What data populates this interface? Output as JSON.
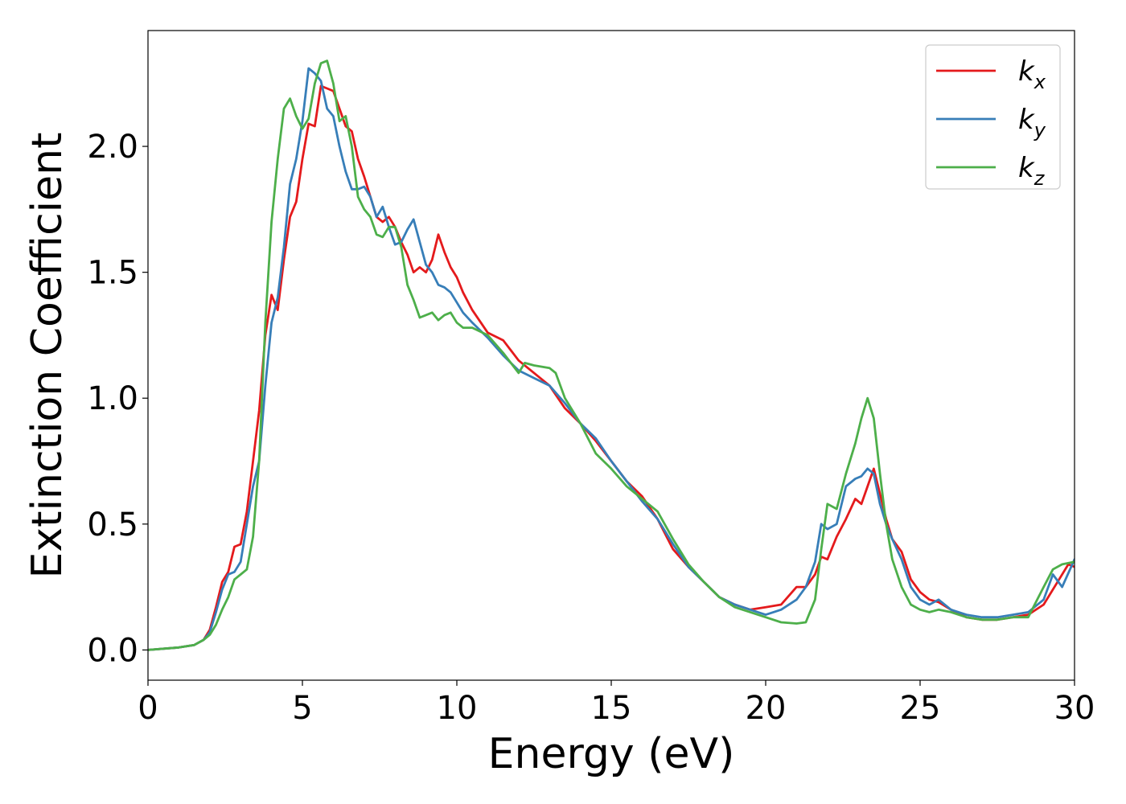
{
  "chart_data": {
    "type": "line",
    "title": "",
    "xlabel": "Energy (eV)",
    "ylabel": "Extinction Coefficient",
    "xlim": [
      0,
      30
    ],
    "ylim": [
      -0.12,
      2.46
    ],
    "xticks": [
      0,
      5,
      10,
      15,
      20,
      25,
      30
    ],
    "xtick_labels": [
      "0",
      "5",
      "10",
      "15",
      "20",
      "25",
      "30"
    ],
    "yticks": [
      0.0,
      0.5,
      1.0,
      1.5,
      2.0
    ],
    "ytick_labels": [
      "0.0",
      "0.5",
      "1.0",
      "1.5",
      "2.0"
    ],
    "grid": false,
    "legend_position": "top-right",
    "series": [
      {
        "name": "k_x",
        "label_main": "k",
        "label_sub": "x",
        "color": "#e41a1c",
        "points": [
          [
            0,
            0
          ],
          [
            1,
            0.01
          ],
          [
            1.5,
            0.02
          ],
          [
            1.8,
            0.04
          ],
          [
            2.0,
            0.08
          ],
          [
            2.2,
            0.17
          ],
          [
            2.4,
            0.27
          ],
          [
            2.6,
            0.31
          ],
          [
            2.8,
            0.41
          ],
          [
            3.0,
            0.42
          ],
          [
            3.2,
            0.55
          ],
          [
            3.4,
            0.75
          ],
          [
            3.6,
            0.95
          ],
          [
            3.8,
            1.25
          ],
          [
            4.0,
            1.41
          ],
          [
            4.2,
            1.35
          ],
          [
            4.4,
            1.55
          ],
          [
            4.6,
            1.72
          ],
          [
            4.8,
            1.78
          ],
          [
            5.0,
            1.95
          ],
          [
            5.2,
            2.09
          ],
          [
            5.4,
            2.08
          ],
          [
            5.6,
            2.24
          ],
          [
            5.8,
            2.23
          ],
          [
            6.0,
            2.22
          ],
          [
            6.2,
            2.15
          ],
          [
            6.4,
            2.08
          ],
          [
            6.6,
            2.06
          ],
          [
            6.8,
            1.95
          ],
          [
            7.0,
            1.88
          ],
          [
            7.2,
            1.8
          ],
          [
            7.4,
            1.72
          ],
          [
            7.6,
            1.7
          ],
          [
            7.8,
            1.72
          ],
          [
            8.0,
            1.68
          ],
          [
            8.2,
            1.62
          ],
          [
            8.4,
            1.57
          ],
          [
            8.6,
            1.5
          ],
          [
            8.8,
            1.52
          ],
          [
            9.0,
            1.5
          ],
          [
            9.2,
            1.55
          ],
          [
            9.4,
            1.65
          ],
          [
            9.6,
            1.58
          ],
          [
            9.8,
            1.52
          ],
          [
            10.0,
            1.48
          ],
          [
            10.2,
            1.42
          ],
          [
            10.5,
            1.35
          ],
          [
            11.0,
            1.26
          ],
          [
            11.5,
            1.23
          ],
          [
            12.0,
            1.15
          ],
          [
            12.5,
            1.1
          ],
          [
            13.0,
            1.05
          ],
          [
            13.5,
            0.96
          ],
          [
            14.0,
            0.9
          ],
          [
            14.5,
            0.83
          ],
          [
            15.0,
            0.75
          ],
          [
            15.5,
            0.67
          ],
          [
            16.0,
            0.61
          ],
          [
            16.5,
            0.52
          ],
          [
            17.0,
            0.4
          ],
          [
            17.5,
            0.33
          ],
          [
            18.0,
            0.27
          ],
          [
            18.5,
            0.21
          ],
          [
            19.0,
            0.18
          ],
          [
            19.5,
            0.16
          ],
          [
            20.0,
            0.17
          ],
          [
            20.5,
            0.18
          ],
          [
            21.0,
            0.25
          ],
          [
            21.3,
            0.25
          ],
          [
            21.6,
            0.3
          ],
          [
            21.8,
            0.37
          ],
          [
            22.0,
            0.36
          ],
          [
            22.3,
            0.45
          ],
          [
            22.6,
            0.52
          ],
          [
            22.9,
            0.6
          ],
          [
            23.1,
            0.58
          ],
          [
            23.3,
            0.65
          ],
          [
            23.5,
            0.72
          ],
          [
            23.7,
            0.62
          ],
          [
            23.9,
            0.52
          ],
          [
            24.1,
            0.44
          ],
          [
            24.4,
            0.39
          ],
          [
            24.7,
            0.28
          ],
          [
            25.0,
            0.23
          ],
          [
            25.3,
            0.2
          ],
          [
            25.6,
            0.19
          ],
          [
            26.0,
            0.16
          ],
          [
            26.5,
            0.13
          ],
          [
            27.0,
            0.12
          ],
          [
            27.5,
            0.12
          ],
          [
            28.0,
            0.13
          ],
          [
            28.5,
            0.14
          ],
          [
            29.0,
            0.18
          ],
          [
            29.5,
            0.28
          ],
          [
            29.8,
            0.34
          ],
          [
            30.0,
            0.33
          ]
        ]
      },
      {
        "name": "k_y",
        "label_main": "k",
        "label_sub": "y",
        "color": "#377eb8",
        "points": [
          [
            0,
            0
          ],
          [
            1,
            0.01
          ],
          [
            1.5,
            0.02
          ],
          [
            1.8,
            0.04
          ],
          [
            2.0,
            0.07
          ],
          [
            2.2,
            0.15
          ],
          [
            2.4,
            0.24
          ],
          [
            2.6,
            0.3
          ],
          [
            2.8,
            0.31
          ],
          [
            3.0,
            0.35
          ],
          [
            3.2,
            0.5
          ],
          [
            3.4,
            0.65
          ],
          [
            3.6,
            0.75
          ],
          [
            3.8,
            1.05
          ],
          [
            4.0,
            1.3
          ],
          [
            4.2,
            1.4
          ],
          [
            4.4,
            1.6
          ],
          [
            4.6,
            1.85
          ],
          [
            4.8,
            1.95
          ],
          [
            5.0,
            2.1
          ],
          [
            5.2,
            2.31
          ],
          [
            5.4,
            2.29
          ],
          [
            5.6,
            2.26
          ],
          [
            5.8,
            2.15
          ],
          [
            6.0,
            2.12
          ],
          [
            6.2,
            2.0
          ],
          [
            6.4,
            1.9
          ],
          [
            6.6,
            1.83
          ],
          [
            6.8,
            1.83
          ],
          [
            7.0,
            1.84
          ],
          [
            7.2,
            1.8
          ],
          [
            7.4,
            1.72
          ],
          [
            7.6,
            1.76
          ],
          [
            7.8,
            1.68
          ],
          [
            8.0,
            1.61
          ],
          [
            8.2,
            1.62
          ],
          [
            8.4,
            1.67
          ],
          [
            8.6,
            1.71
          ],
          [
            8.8,
            1.62
          ],
          [
            9.0,
            1.53
          ],
          [
            9.2,
            1.5
          ],
          [
            9.4,
            1.45
          ],
          [
            9.6,
            1.44
          ],
          [
            9.8,
            1.42
          ],
          [
            10.0,
            1.38
          ],
          [
            10.2,
            1.34
          ],
          [
            10.5,
            1.3
          ],
          [
            11.0,
            1.24
          ],
          [
            11.5,
            1.17
          ],
          [
            12.0,
            1.11
          ],
          [
            12.5,
            1.08
          ],
          [
            13.0,
            1.05
          ],
          [
            13.5,
            0.98
          ],
          [
            14.0,
            0.9
          ],
          [
            14.5,
            0.84
          ],
          [
            15.0,
            0.75
          ],
          [
            15.5,
            0.67
          ],
          [
            16.0,
            0.59
          ],
          [
            16.5,
            0.52
          ],
          [
            17.0,
            0.42
          ],
          [
            17.5,
            0.33
          ],
          [
            18.0,
            0.27
          ],
          [
            18.5,
            0.21
          ],
          [
            19.0,
            0.18
          ],
          [
            19.5,
            0.16
          ],
          [
            20.0,
            0.14
          ],
          [
            20.5,
            0.16
          ],
          [
            21.0,
            0.2
          ],
          [
            21.3,
            0.25
          ],
          [
            21.6,
            0.35
          ],
          [
            21.8,
            0.5
          ],
          [
            22.0,
            0.48
          ],
          [
            22.3,
            0.5
          ],
          [
            22.6,
            0.65
          ],
          [
            22.9,
            0.68
          ],
          [
            23.1,
            0.69
          ],
          [
            23.3,
            0.72
          ],
          [
            23.5,
            0.7
          ],
          [
            23.7,
            0.58
          ],
          [
            23.9,
            0.5
          ],
          [
            24.1,
            0.44
          ],
          [
            24.4,
            0.36
          ],
          [
            24.7,
            0.25
          ],
          [
            25.0,
            0.2
          ],
          [
            25.3,
            0.18
          ],
          [
            25.6,
            0.2
          ],
          [
            26.0,
            0.16
          ],
          [
            26.5,
            0.14
          ],
          [
            27.0,
            0.13
          ],
          [
            27.5,
            0.13
          ],
          [
            28.0,
            0.14
          ],
          [
            28.5,
            0.15
          ],
          [
            29.0,
            0.2
          ],
          [
            29.3,
            0.3
          ],
          [
            29.6,
            0.25
          ],
          [
            30.0,
            0.36
          ]
        ]
      },
      {
        "name": "k_z",
        "label_main": "k",
        "label_sub": "z",
        "color": "#4daf4a",
        "points": [
          [
            0,
            0
          ],
          [
            1,
            0.01
          ],
          [
            1.5,
            0.02
          ],
          [
            1.8,
            0.04
          ],
          [
            2.0,
            0.06
          ],
          [
            2.2,
            0.1
          ],
          [
            2.4,
            0.16
          ],
          [
            2.6,
            0.21
          ],
          [
            2.8,
            0.28
          ],
          [
            3.0,
            0.3
          ],
          [
            3.2,
            0.32
          ],
          [
            3.4,
            0.45
          ],
          [
            3.6,
            0.75
          ],
          [
            3.8,
            1.3
          ],
          [
            4.0,
            1.7
          ],
          [
            4.2,
            1.95
          ],
          [
            4.4,
            2.15
          ],
          [
            4.6,
            2.19
          ],
          [
            4.8,
            2.12
          ],
          [
            5.0,
            2.07
          ],
          [
            5.2,
            2.11
          ],
          [
            5.4,
            2.25
          ],
          [
            5.6,
            2.33
          ],
          [
            5.8,
            2.34
          ],
          [
            6.0,
            2.25
          ],
          [
            6.2,
            2.1
          ],
          [
            6.4,
            2.12
          ],
          [
            6.6,
            2.0
          ],
          [
            6.8,
            1.8
          ],
          [
            7.0,
            1.75
          ],
          [
            7.2,
            1.72
          ],
          [
            7.4,
            1.65
          ],
          [
            7.6,
            1.64
          ],
          [
            7.8,
            1.68
          ],
          [
            8.0,
            1.68
          ],
          [
            8.2,
            1.6
          ],
          [
            8.4,
            1.45
          ],
          [
            8.6,
            1.39
          ],
          [
            8.8,
            1.32
          ],
          [
            9.0,
            1.33
          ],
          [
            9.2,
            1.34
          ],
          [
            9.4,
            1.31
          ],
          [
            9.6,
            1.33
          ],
          [
            9.8,
            1.34
          ],
          [
            10.0,
            1.3
          ],
          [
            10.2,
            1.28
          ],
          [
            10.5,
            1.28
          ],
          [
            11.0,
            1.25
          ],
          [
            11.5,
            1.18
          ],
          [
            12.0,
            1.1
          ],
          [
            12.2,
            1.14
          ],
          [
            12.5,
            1.13
          ],
          [
            13.0,
            1.12
          ],
          [
            13.2,
            1.1
          ],
          [
            13.5,
            1.0
          ],
          [
            14.0,
            0.9
          ],
          [
            14.5,
            0.78
          ],
          [
            15.0,
            0.72
          ],
          [
            15.5,
            0.65
          ],
          [
            16.0,
            0.6
          ],
          [
            16.5,
            0.55
          ],
          [
            17.0,
            0.44
          ],
          [
            17.5,
            0.34
          ],
          [
            18.0,
            0.27
          ],
          [
            18.5,
            0.21
          ],
          [
            19.0,
            0.17
          ],
          [
            19.5,
            0.15
          ],
          [
            20.0,
            0.13
          ],
          [
            20.5,
            0.11
          ],
          [
            21.0,
            0.105
          ],
          [
            21.3,
            0.11
          ],
          [
            21.6,
            0.2
          ],
          [
            21.8,
            0.4
          ],
          [
            22.0,
            0.58
          ],
          [
            22.3,
            0.56
          ],
          [
            22.6,
            0.7
          ],
          [
            22.9,
            0.82
          ],
          [
            23.1,
            0.92
          ],
          [
            23.3,
            1.0
          ],
          [
            23.5,
            0.92
          ],
          [
            23.7,
            0.7
          ],
          [
            23.9,
            0.5
          ],
          [
            24.1,
            0.36
          ],
          [
            24.4,
            0.25
          ],
          [
            24.7,
            0.18
          ],
          [
            25.0,
            0.16
          ],
          [
            25.3,
            0.15
          ],
          [
            25.6,
            0.16
          ],
          [
            26.0,
            0.15
          ],
          [
            26.5,
            0.13
          ],
          [
            27.0,
            0.12
          ],
          [
            27.5,
            0.12
          ],
          [
            28.0,
            0.13
          ],
          [
            28.5,
            0.13
          ],
          [
            29.0,
            0.25
          ],
          [
            29.3,
            0.32
          ],
          [
            29.6,
            0.34
          ],
          [
            30.0,
            0.35
          ]
        ]
      }
    ]
  }
}
